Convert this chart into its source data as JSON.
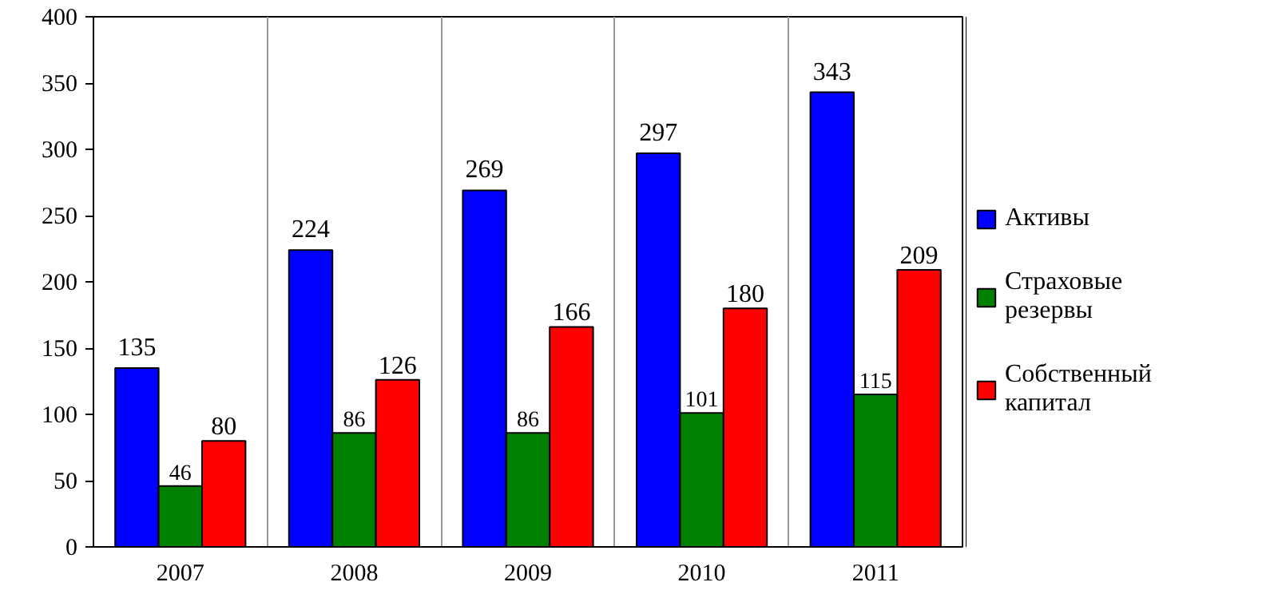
{
  "chart_data": {
    "type": "bar",
    "categories": [
      "2007",
      "2008",
      "2009",
      "2010",
      "2011"
    ],
    "series": [
      {
        "name": "Активы",
        "color": "#0000ff",
        "values": [
          135,
          224,
          269,
          297,
          343
        ]
      },
      {
        "name": "Страховые резервы",
        "color": "#008000",
        "values": [
          46,
          86,
          86,
          101,
          115
        ]
      },
      {
        "name": "Собственный капитал",
        "color": "#ff0000",
        "values": [
          80,
          126,
          166,
          180,
          209
        ]
      }
    ],
    "ylim": [
      0,
      400
    ],
    "yticks": [
      0,
      50,
      100,
      150,
      200,
      250,
      300,
      350,
      400
    ],
    "grid": "x",
    "legend": "right",
    "data_labels": true
  }
}
